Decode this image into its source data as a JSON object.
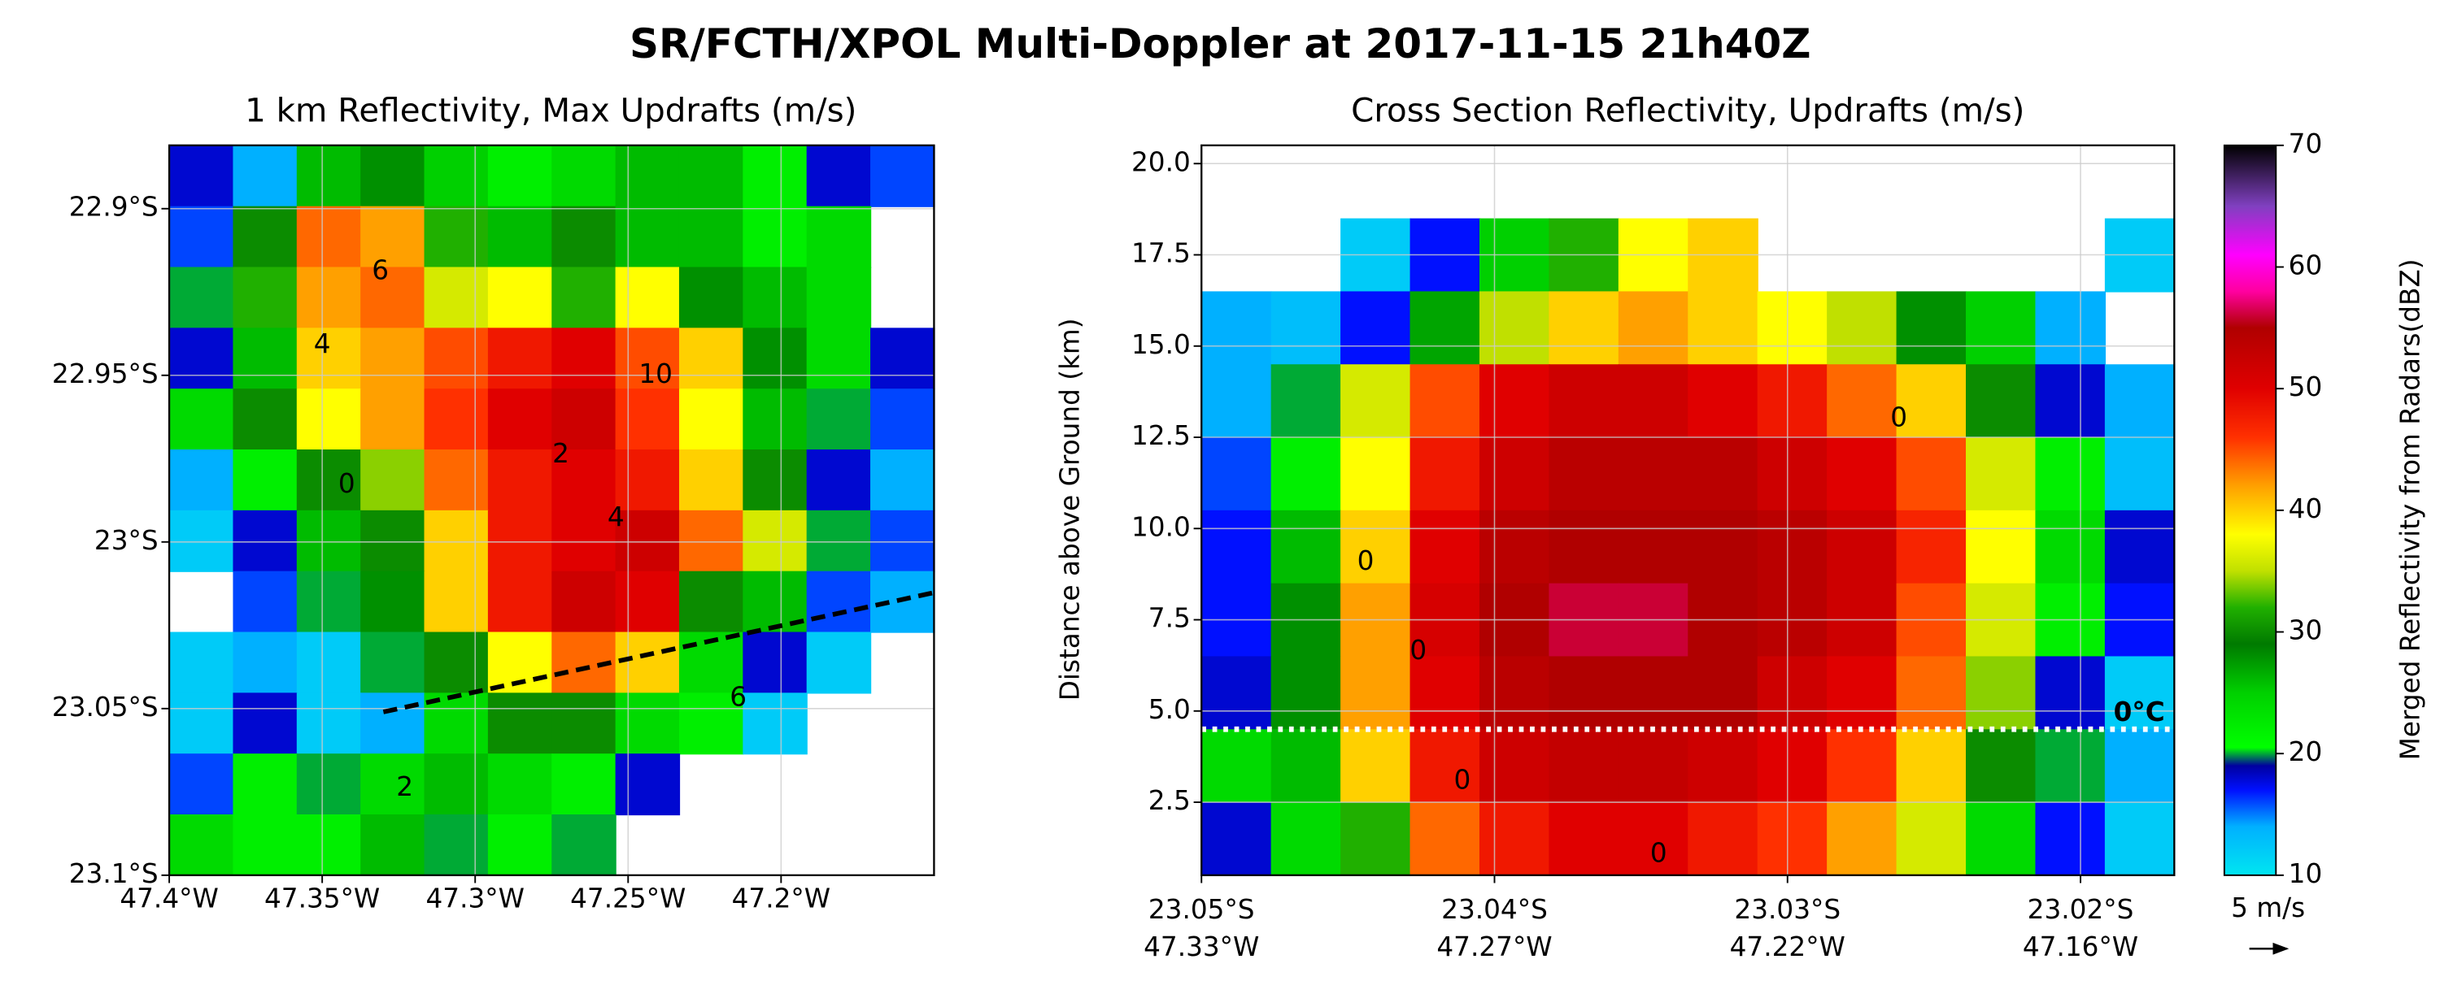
{
  "title": "SR/FCTH/XPOL Multi-Doppler at 2017-11-15 21h40Z",
  "chart_data": [
    {
      "type": "heatmap-map",
      "title": "1 km Reflectivity, Max Updrafts (m/s)",
      "xlim": [
        -47.4,
        -47.15
      ],
      "xticks": [
        {
          "value": -47.4,
          "label": "47.4°W"
        },
        {
          "value": -47.35,
          "label": "47.35°W"
        },
        {
          "value": -47.3,
          "label": "47.3°W"
        },
        {
          "value": -47.25,
          "label": "47.25°W"
        },
        {
          "value": -47.2,
          "label": "47.2°W"
        }
      ],
      "ylim": [
        -23.1,
        -22.881
      ],
      "yticks": [
        {
          "value": -22.9,
          "label": "22.9°S"
        },
        {
          "value": -22.95,
          "label": "22.95°S"
        },
        {
          "value": -23.0,
          "label": "23°S"
        },
        {
          "value": -23.05,
          "label": "23.05°S"
        },
        {
          "value": -23.1,
          "label": "23.1°S"
        }
      ],
      "grid": true,
      "z": [
        [
          18,
          14,
          26,
          28,
          25,
          22,
          24,
          26,
          26,
          22,
          18,
          16
        ],
        [
          16,
          30,
          44,
          42,
          32,
          26,
          30,
          26,
          26,
          22,
          24,
          null
        ],
        [
          20,
          32,
          42,
          44,
          36,
          38,
          32,
          38,
          28,
          26,
          24,
          null
        ],
        [
          18,
          26,
          40,
          42,
          45,
          48,
          50,
          45,
          40,
          28,
          24,
          18
        ],
        [
          24,
          30,
          38,
          42,
          46,
          50,
          52,
          46,
          38,
          26,
          20,
          16
        ],
        [
          14,
          22,
          30,
          34,
          44,
          48,
          50,
          48,
          40,
          30,
          18,
          14
        ],
        [
          12,
          18,
          26,
          30,
          40,
          48,
          50,
          52,
          44,
          36,
          20,
          16
        ],
        [
          null,
          16,
          20,
          28,
          40,
          48,
          52,
          50,
          30,
          26,
          16,
          14
        ],
        [
          12,
          14,
          12,
          20,
          30,
          38,
          44,
          40,
          24,
          18,
          12,
          null
        ],
        [
          12,
          18,
          12,
          14,
          24,
          30,
          30,
          24,
          22,
          12,
          null,
          null
        ],
        [
          16,
          22,
          20,
          24,
          26,
          24,
          22,
          18,
          null,
          null,
          null,
          null
        ],
        [
          24,
          22,
          22,
          26,
          20,
          22,
          20,
          null,
          null,
          null,
          null,
          null
        ]
      ],
      "contour_labels": [
        {
          "lon": -47.331,
          "lat": -22.919,
          "level": 6
        },
        {
          "lon": -47.35,
          "lat": -22.941,
          "level": 4
        },
        {
          "lon": -47.241,
          "lat": -22.95,
          "level": 10
        },
        {
          "lon": -47.272,
          "lat": -22.974,
          "level": 2
        },
        {
          "lon": -47.254,
          "lat": -22.993,
          "level": 4
        },
        {
          "lon": -47.342,
          "lat": -22.983,
          "level": 0
        },
        {
          "lon": -47.214,
          "lat": -23.047,
          "level": 6
        },
        {
          "lon": -47.323,
          "lat": -23.074,
          "level": 2
        }
      ],
      "section_line": {
        "lon": [
          -47.33,
          -47.149
        ],
        "lat": [
          -23.051,
          -23.015
        ]
      }
    },
    {
      "type": "heatmap-section",
      "title": "Cross Section Reflectivity, Updrafts (m/s)",
      "ylabel": "Distance above Ground (km)",
      "xlim": [
        -23.05,
        -23.0168
      ],
      "xticks": [
        {
          "value": -23.05,
          "label": [
            "23.05°S",
            "47.33°W"
          ]
        },
        {
          "value": -23.04,
          "label": [
            "23.04°S",
            "47.27°W"
          ]
        },
        {
          "value": -23.03,
          "label": [
            "23.03°S",
            "47.22°W"
          ]
        },
        {
          "value": -23.02,
          "label": [
            "23.02°S",
            "47.16°W"
          ]
        }
      ],
      "ylim": [
        0.5,
        20.5
      ],
      "yticks": [
        2.5,
        {
          "value": 5,
          "label": "5.0"
        },
        7.5,
        {
          "value": 10,
          "label": "10.0"
        },
        12.5,
        {
          "value": 15,
          "label": "15.0"
        },
        17.5,
        {
          "value": 20,
          "label": "20.0"
        }
      ],
      "grid": true,
      "z": [
        [
          null,
          null,
          null,
          null,
          null,
          null,
          null,
          null,
          null,
          null,
          null,
          null,
          null,
          null
        ],
        [
          null,
          null,
          12,
          17,
          25,
          32,
          38,
          40,
          null,
          null,
          null,
          null,
          null,
          12
        ],
        [
          14,
          13,
          17,
          27,
          35,
          40,
          42,
          40,
          38,
          35,
          28,
          25,
          14,
          null
        ],
        [
          14,
          20,
          36,
          45,
          50,
          52,
          52,
          50,
          48,
          44,
          40,
          30,
          18,
          14
        ],
        [
          16,
          22,
          38,
          48,
          52,
          54,
          54,
          54,
          52,
          50,
          45,
          36,
          22,
          13
        ],
        [
          17,
          26,
          40,
          50,
          54,
          55,
          55,
          55,
          54,
          52,
          47,
          38,
          24,
          18
        ],
        [
          17,
          28,
          42,
          51,
          55,
          56,
          56,
          55,
          54,
          52,
          45,
          36,
          22,
          17
        ],
        [
          18,
          28,
          42,
          50,
          54,
          55,
          55,
          55,
          52,
          50,
          44,
          34,
          18,
          12
        ],
        [
          24,
          26,
          40,
          48,
          52,
          53,
          53,
          52,
          50,
          46,
          40,
          30,
          20,
          14
        ],
        [
          18,
          24,
          32,
          44,
          48,
          50,
          50,
          48,
          46,
          42,
          36,
          24,
          17,
          12
        ]
      ],
      "contour_labels": [
        {
          "lat": -23.0262,
          "z": 13.0,
          "level": 0
        },
        {
          "lat": -23.0444,
          "z": 9.07,
          "level": 0
        },
        {
          "lat": -23.0426,
          "z": 6.62,
          "level": 0
        },
        {
          "lat": -23.0411,
          "z": 3.07,
          "level": 0
        },
        {
          "lat": -23.0344,
          "z": 1.06,
          "level": 0
        }
      ],
      "freezing_level": {
        "value": 4.5,
        "label": "0°C"
      },
      "quiver_key": {
        "value": 5,
        "label": "5 m/s"
      }
    }
  ],
  "colorbar": {
    "label": "Merged Reflectivity from Radars(dBZ)",
    "lim": [
      10,
      70
    ],
    "ticks": [
      10,
      20,
      30,
      40,
      50,
      60,
      70
    ],
    "colormap": [
      [
        10,
        "#00e6f0"
      ],
      [
        14,
        "#00b0ff"
      ],
      [
        17,
        "#0010ff"
      ],
      [
        19,
        "#0000a0"
      ],
      [
        20.5,
        "#00ff00"
      ],
      [
        25,
        "#00d000"
      ],
      [
        29,
        "#007a00"
      ],
      [
        32,
        "#20b000"
      ],
      [
        35,
        "#c0e000"
      ],
      [
        38,
        "#ffff00"
      ],
      [
        42,
        "#ffa000"
      ],
      [
        46,
        "#ff3000"
      ],
      [
        50,
        "#e00000"
      ],
      [
        55,
        "#b00000"
      ],
      [
        58,
        "#ff00a0"
      ],
      [
        61,
        "#ff00ff"
      ],
      [
        65,
        "#8040c0"
      ],
      [
        70,
        "#000000"
      ]
    ]
  }
}
